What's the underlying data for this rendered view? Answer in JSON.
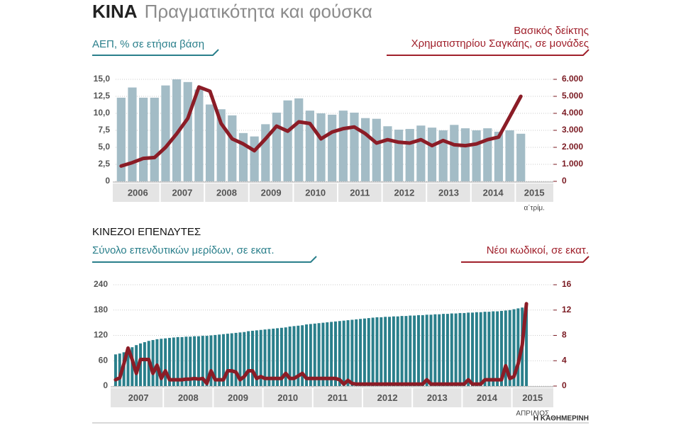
{
  "header": {
    "title": "ΚΙΝΑ",
    "subtitle": "Πραγματικότητα και φούσκα"
  },
  "source": "Η ΚΑΘΗΜΕΡΙΝΗ",
  "chart_data": [
    {
      "type": "bar_line",
      "categories": [
        "2006",
        null,
        null,
        null,
        "2007",
        null,
        null,
        null,
        "2008",
        null,
        null,
        null,
        "2009",
        null,
        null,
        null,
        "2010",
        null,
        null,
        null,
        "2011",
        null,
        null,
        null,
        "2012",
        null,
        null,
        null,
        "2013",
        null,
        null,
        null,
        "2014",
        null,
        null,
        null,
        "2015"
      ],
      "x_note": "α΄τρίμ.",
      "series": [
        {
          "name": "ΑΕΠ, % σε ετήσια βάση",
          "color": "#a3bcc6",
          "values": [
            12.3,
            13.8,
            12.3,
            12.3,
            14.1,
            15.0,
            14.6,
            13.5,
            11.3,
            10.6,
            9.7,
            7.1,
            6.6,
            8.4,
            10.1,
            11.9,
            12.2,
            10.4,
            10.0,
            9.8,
            10.4,
            10.1,
            9.3,
            9.2,
            8.1,
            7.6,
            7.7,
            8.2,
            7.9,
            7.5,
            8.3,
            7.8,
            7.5,
            7.8,
            7.3,
            7.5,
            7.0
          ]
        },
        {
          "name": [
            "Βασικός δείκτης",
            "Χρηματιστηρίου Σαγκάης, σε μονάδες"
          ],
          "color": "#8b1c26",
          "axis": "y2",
          "values": [
            900,
            1100,
            1350,
            1400,
            2000,
            2800,
            3700,
            5550,
            5300,
            3400,
            2500,
            2200,
            1800,
            2500,
            3250,
            2950,
            3500,
            3400,
            2500,
            2900,
            3100,
            3200,
            2800,
            2250,
            2450,
            2300,
            2250,
            2450,
            2100,
            2400,
            2150,
            2100,
            2200,
            2450,
            2600,
            3800,
            5000
          ]
        }
      ],
      "ylim": [
        0,
        15
      ],
      "yticks": [
        0,
        {
          "value": 2.5,
          "label": "2,5"
        },
        {
          "value": 5,
          "label": "5,0"
        },
        {
          "value": 7.5,
          "label": "7,5"
        },
        {
          "value": 10,
          "label": "10,0"
        },
        {
          "value": 12.5,
          "label": "12,5"
        },
        {
          "value": 15,
          "label": "15,0"
        }
      ],
      "y2lim": [
        0,
        6000
      ],
      "y2ticks": [
        0,
        {
          "value": 1000,
          "label": "1.000"
        },
        {
          "value": 2000,
          "label": "2.000"
        },
        {
          "value": 3000,
          "label": "3.000"
        },
        {
          "value": 4000,
          "label": "4.000"
        },
        {
          "value": 5000,
          "label": "5.000"
        },
        {
          "value": 6000,
          "label": "6.000"
        }
      ],
      "grid": true
    },
    {
      "type": "bar_line",
      "title": "ΚΙΝΕΖΟΙ ΕΠΕΝΔΥΤΕΣ",
      "categories": [
        "2007",
        null,
        null,
        null,
        null,
        null,
        null,
        null,
        null,
        null,
        null,
        null,
        "2008",
        null,
        null,
        null,
        null,
        null,
        null,
        null,
        null,
        null,
        null,
        null,
        "2009",
        null,
        null,
        null,
        null,
        null,
        null,
        null,
        null,
        null,
        null,
        null,
        "2010",
        null,
        null,
        null,
        null,
        null,
        null,
        null,
        null,
        null,
        null,
        null,
        "2011",
        null,
        null,
        null,
        null,
        null,
        null,
        null,
        null,
        null,
        null,
        null,
        "2012",
        null,
        null,
        null,
        null,
        null,
        null,
        null,
        null,
        null,
        null,
        null,
        "2013",
        null,
        null,
        null,
        null,
        null,
        null,
        null,
        null,
        null,
        null,
        null,
        "2014",
        null,
        null,
        null,
        null,
        null,
        null,
        null,
        null,
        null,
        null,
        null,
        "2015",
        null,
        null,
        null
      ],
      "x_note": "ΑΠΡΙΛΙΟΣ",
      "series": [
        {
          "name": "Σύνολο επενδυτικών μερίδων, σε εκατ.",
          "color": "#2a7f8b",
          "values": [
            75,
            77,
            80,
            85,
            92,
            97,
            101,
            104,
            107,
            109,
            111,
            112,
            113,
            114,
            115,
            116,
            116,
            117,
            117,
            118,
            118,
            119,
            119,
            120,
            121,
            122,
            123,
            124,
            125,
            126,
            127,
            128,
            130,
            131,
            132,
            133,
            134,
            135,
            136,
            137,
            138,
            139,
            141,
            142,
            143,
            144,
            146,
            147,
            148,
            149,
            150,
            151,
            152,
            153,
            154,
            155,
            156,
            157,
            158,
            159,
            160,
            161,
            162,
            163,
            163,
            164,
            164,
            165,
            165,
            166,
            166,
            167,
            167,
            168,
            168,
            169,
            169,
            170,
            170,
            171,
            171,
            172,
            172,
            173,
            173,
            174,
            174,
            175,
            175,
            176,
            176,
            177,
            177,
            178,
            179,
            180,
            182,
            184,
            186,
            188
          ]
        },
        {
          "name": "Νέοι κωδικοί, σε εκατ.",
          "color": "#8b1c26",
          "axis": "y2",
          "values": [
            1.0,
            1.3,
            3.5,
            6.0,
            4.2,
            2.0,
            4.2,
            4.2,
            4.2,
            2.0,
            3.3,
            1.2,
            2.4,
            1.0,
            1.0,
            1.0,
            1.0,
            1.1,
            1.1,
            1.2,
            1.1,
            1.2,
            0.4,
            2.4,
            1.0,
            1.0,
            1.0,
            2.4,
            2.4,
            2.2,
            1.0,
            1.5,
            2.4,
            2.4,
            1.2,
            1.5,
            1.2,
            1.2,
            1.2,
            1.2,
            1.2,
            2.0,
            1.2,
            1.2,
            1.6,
            2.0,
            1.2,
            1.2,
            1.2,
            1.2,
            1.2,
            1.2,
            1.2,
            1.2,
            1.0,
            0.3,
            0.9,
            0.4,
            0.3,
            0.3,
            0.3,
            0.3,
            0.3,
            0.3,
            0.3,
            0.3,
            0.3,
            0.3,
            0.3,
            0.3,
            0.3,
            0.3,
            0.3,
            0.3,
            0.3,
            1.0,
            0.3,
            0.3,
            0.3,
            0.3,
            0.3,
            0.3,
            0.3,
            0.3,
            0.3,
            1.0,
            0.3,
            0.3,
            0.3,
            1.0,
            1.0,
            1.0,
            1.0,
            1.0,
            3.2,
            1.2,
            1.5,
            3.5,
            6.5,
            13.0
          ]
        }
      ],
      "ylim": [
        0,
        240
      ],
      "yticks": [
        0,
        60,
        120,
        180,
        240
      ],
      "y2lim": [
        0,
        16
      ],
      "y2ticks": [
        0,
        4,
        8,
        12,
        16
      ],
      "grid": true
    }
  ]
}
